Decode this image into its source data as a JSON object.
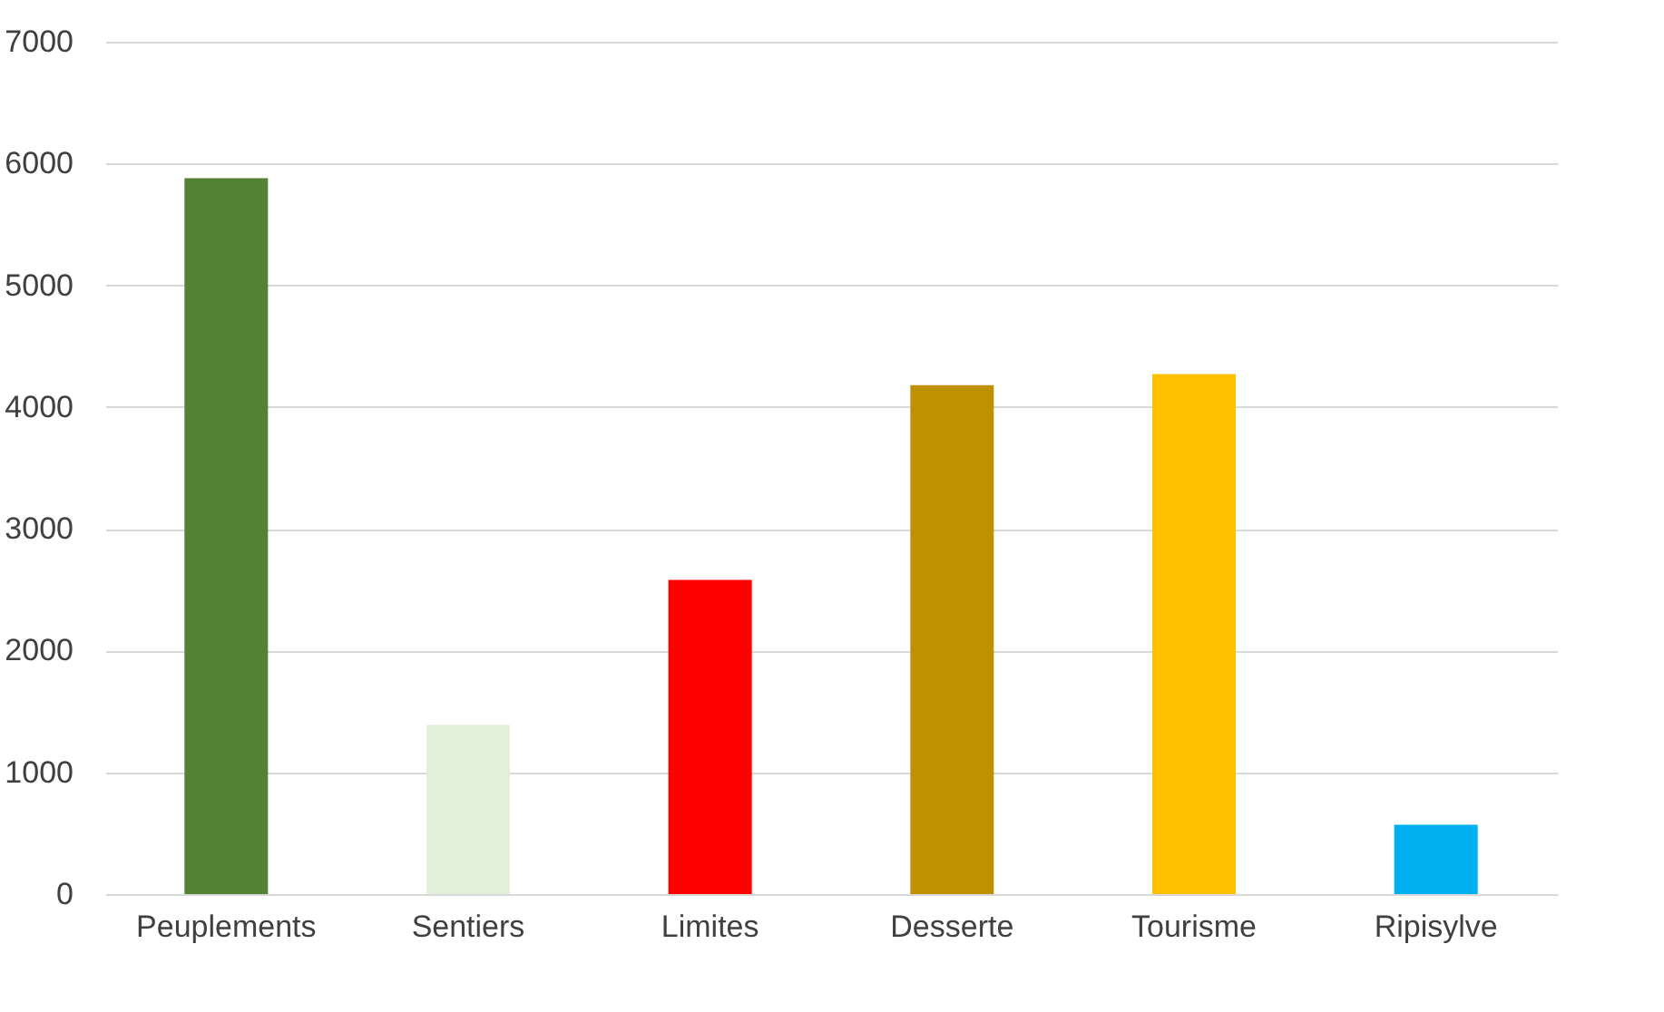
{
  "chart_data": {
    "type": "bar",
    "categories": [
      "Peuplements",
      "Sentiers",
      "Limites",
      "Desserte",
      "Tourisme",
      "Ripisylve"
    ],
    "values": [
      5880,
      1390,
      2580,
      4180,
      4270,
      570
    ],
    "colors": [
      "#548235",
      "#e2efda",
      "#ff0000",
      "#bf9000",
      "#ffc000",
      "#00b0f0"
    ],
    "ylim": [
      0,
      7000
    ],
    "yticks": [
      0,
      1000,
      2000,
      3000,
      4000,
      5000,
      6000,
      7000
    ],
    "grid": "y"
  }
}
